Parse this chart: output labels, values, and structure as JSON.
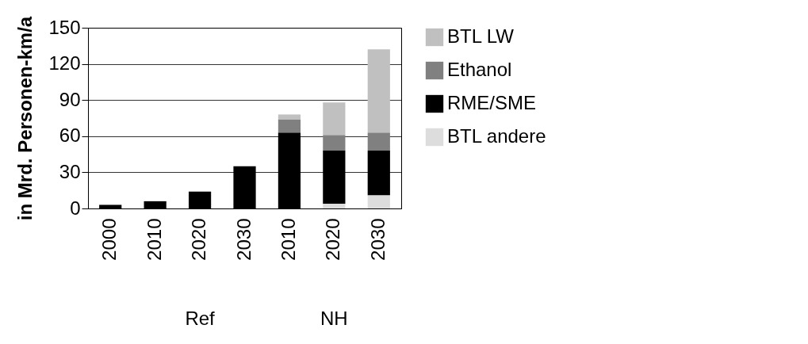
{
  "chart_data": {
    "type": "bar",
    "stacked": true,
    "ylabel": "in Mrd. Personen-km/a",
    "categories": [
      "2000",
      "2010",
      "2020",
      "2030",
      "2010",
      "2020",
      "2030"
    ],
    "series": [
      {
        "name": "BTL andere",
        "color": "#dddddd",
        "values": [
          0,
          0,
          0,
          0,
          0,
          4,
          11
        ]
      },
      {
        "name": "RME/SME",
        "color": "#000000",
        "values": [
          3,
          6,
          14,
          35,
          63,
          44,
          37
        ]
      },
      {
        "name": "Ethanol",
        "color": "#808080",
        "values": [
          0,
          0,
          0,
          0,
          11,
          13,
          15
        ]
      },
      {
        "name": "BTL LW",
        "color": "#c0c0c0",
        "values": [
          0,
          0,
          0,
          0,
          4,
          27,
          69
        ]
      }
    ],
    "ylim": [
      0,
      150
    ],
    "yticks": [
      0,
      30,
      60,
      90,
      120,
      150
    ],
    "grid": "y",
    "legend": "right",
    "annotations": [
      "Ref",
      "NH"
    ]
  }
}
